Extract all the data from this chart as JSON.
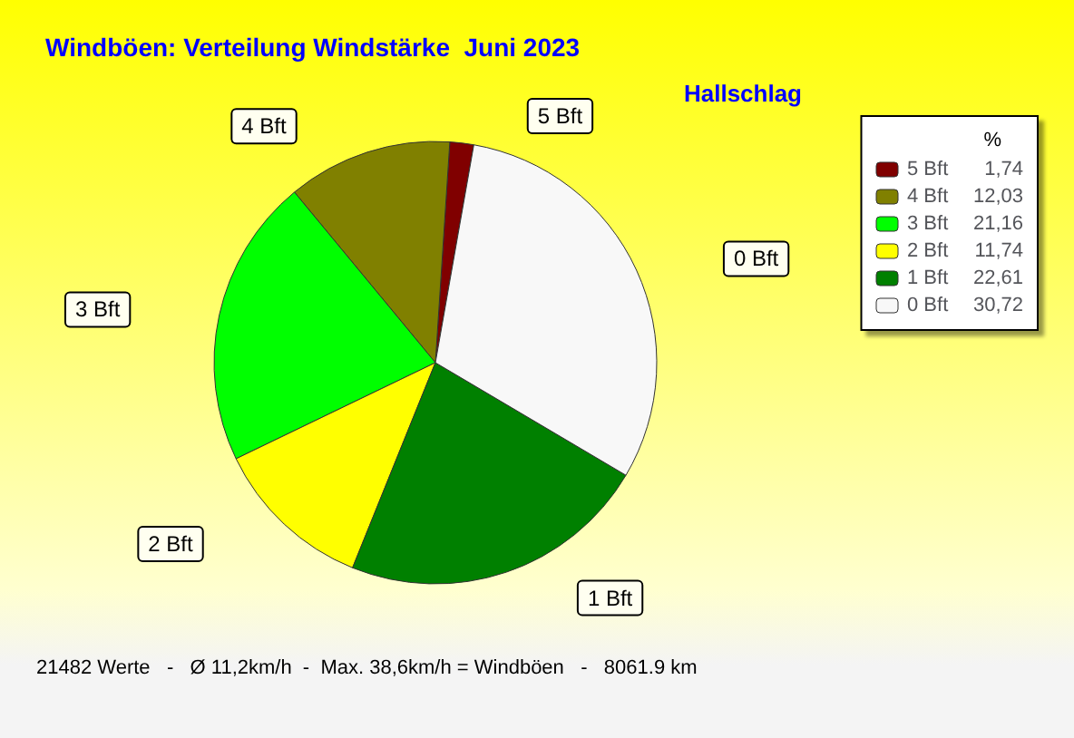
{
  "chart_data": {
    "type": "pie",
    "title": "Windböen: Verteilung Windstärke  Juni 2023",
    "subtitle": "Hallschlag",
    "legend_title": "%",
    "categories": [
      "5 Bft",
      "4 Bft",
      "3 Bft",
      "2 Bft",
      "1 Bft",
      "0 Bft"
    ],
    "values": [
      1.74,
      12.03,
      21.16,
      11.74,
      22.61,
      30.72
    ],
    "value_labels": [
      "1,74",
      "12,03",
      "21,16",
      "11,74",
      "22,61",
      "30,72"
    ],
    "colors": [
      "#800000",
      "#808000",
      "#00ff00",
      "#ffff00",
      "#008000",
      "#f8f8f8"
    ],
    "legend": "top right",
    "annotations": [
      "21482 Werte   -   Ø 11,2km/h  -  Max. 38,6km/h = Windböen   -   8061.9 km"
    ]
  }
}
